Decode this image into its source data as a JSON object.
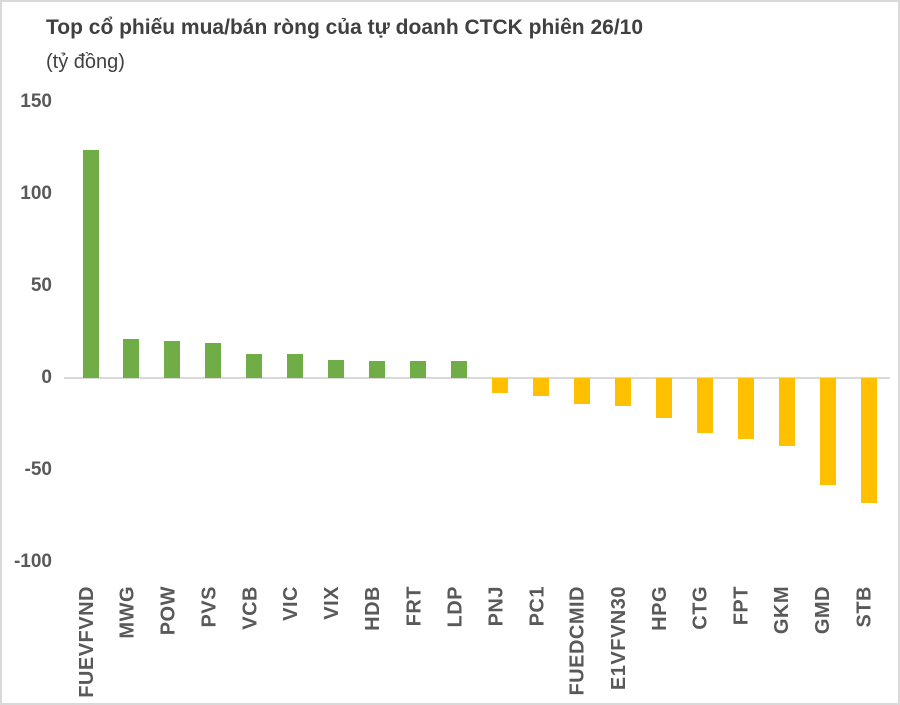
{
  "page": {
    "title": "Top cổ phiếu mua/bán ròng của tự doanh CTCK phiên 26/10",
    "subtitle": "(tỷ đồng)"
  },
  "colors": {
    "positive_bar": "#70AD47",
    "negative_bar": "#FFC000",
    "axis_text": "#595959",
    "title_text": "#404040",
    "zero_line": "#D9D9D9",
    "page_border": "#D9D9D9",
    "background": "#FFFFFF"
  },
  "chart_data": {
    "type": "bar",
    "title": "Top cổ phiếu mua/bán ròng của tự doanh CTCK phiên 26/10",
    "unit_label": "(tỷ đồng)",
    "categories": [
      "FUEVFVND",
      "MWG",
      "POW",
      "PVS",
      "VCB",
      "VIC",
      "VIX",
      "HDB",
      "FRT",
      "LDP",
      "PNJ",
      "PC1",
      "FUEDCMID",
      "E1VFVN30",
      "HPG",
      "CTG",
      "FPT",
      "GKM",
      "GMD",
      "STB"
    ],
    "values": [
      124,
      21,
      20,
      19,
      13,
      13,
      10,
      9,
      9,
      9,
      -8,
      -10,
      -14,
      -15,
      -22,
      -30,
      -33,
      -37,
      -58,
      -68
    ],
    "y_ticks": [
      150,
      100,
      50,
      0,
      -50,
      -100
    ],
    "ylim": [
      -110,
      150
    ],
    "xlabel": "",
    "ylabel": "",
    "grid": "zero-line-only",
    "legend": "none",
    "x_label_rotation_deg": -90
  }
}
